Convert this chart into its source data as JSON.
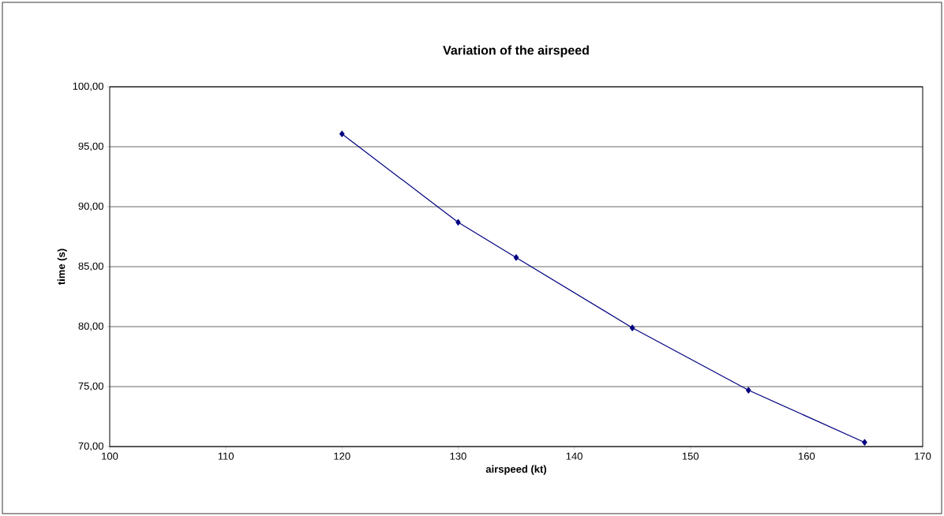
{
  "chart_data": {
    "type": "line",
    "title": "Variation of the airspeed",
    "xlabel": "airspeed (kt)",
    "ylabel": "time (s)",
    "x": [
      120,
      130,
      135,
      145,
      155,
      165
    ],
    "series": [
      {
        "color": "#000080",
        "values": [
          96.07,
          88.7,
          85.76,
          79.9,
          74.7,
          70.35
        ]
      }
    ],
    "xlim": [
      100,
      170
    ],
    "xticks": [
      100,
      110,
      120,
      130,
      140,
      150,
      160,
      170
    ],
    "ylim": [
      70,
      100
    ],
    "yticks": [
      {
        "value": 70,
        "label": "70,00"
      },
      {
        "value": 75,
        "label": "75,00"
      },
      {
        "value": 80,
        "label": "80,00"
      },
      {
        "value": 85,
        "label": "85,00"
      },
      {
        "value": 90,
        "label": "90,00"
      },
      {
        "value": 95,
        "label": "95,00"
      },
      {
        "value": 100,
        "label": "100,00"
      }
    ],
    "grid": "y",
    "marker": "diamond",
    "line_style": "solid"
  }
}
